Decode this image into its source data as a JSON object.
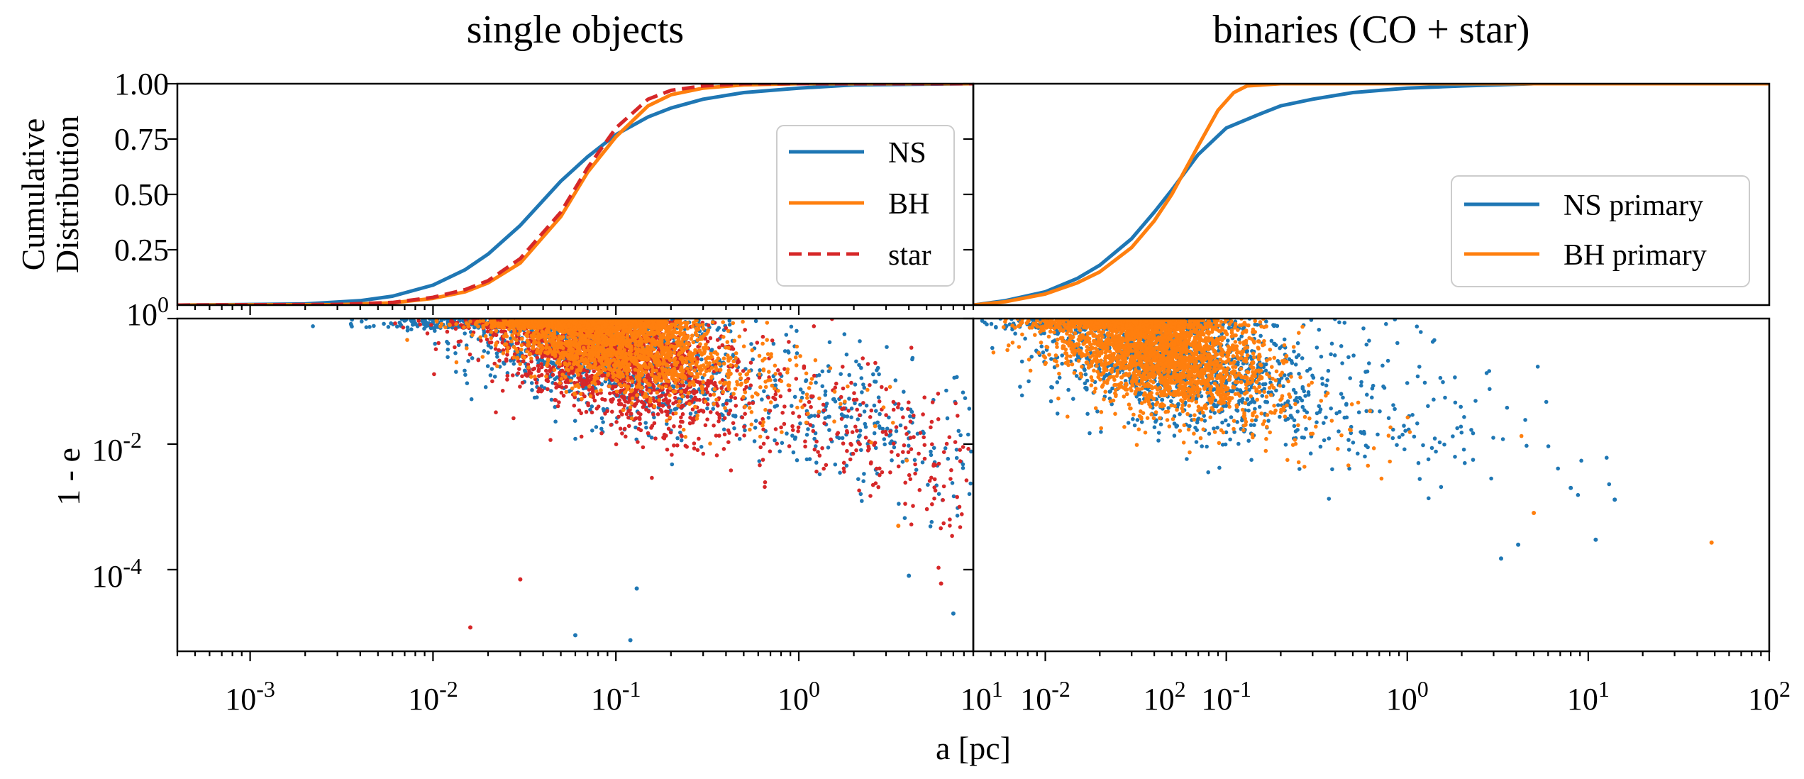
{
  "titles": {
    "left": "single objects",
    "right": "binaries (CO + star)"
  },
  "axes": {
    "x_label": "a [pc]",
    "top_y_label_lines": [
      "Cumulative",
      "Distribution"
    ],
    "bottom_y_label": "1 - e",
    "cdf_tick_labels": [
      "0.25",
      "0.50",
      "0.75",
      "1.00"
    ],
    "cdf_bottom_label_base": "10",
    "cdf_bottom_label_exp": "0",
    "y_tick_labels": [
      {
        "base": "10",
        "exp": "0",
        "value": 1
      },
      {
        "base": "10",
        "exp": "-2",
        "value": 0.01
      },
      {
        "base": "10",
        "exp": "-4",
        "value": 0.0001
      }
    ],
    "x_tick_labels_left": [
      {
        "base": "10",
        "exp": "-3",
        "value": 0.001
      },
      {
        "base": "10",
        "exp": "-2",
        "value": 0.01
      },
      {
        "base": "10",
        "exp": "-1",
        "value": 0.1
      },
      {
        "base": "10",
        "exp": "0",
        "value": 1
      },
      {
        "base": "10",
        "exp": "1",
        "value": 10
      },
      {
        "base": "10",
        "exp": "2",
        "value": 100
      }
    ],
    "x_tick_labels_right": [
      {
        "base": "10",
        "exp": "-2",
        "value": 0.01
      },
      {
        "base": "10",
        "exp": "-1",
        "value": 0.1
      },
      {
        "base": "10",
        "exp": "0",
        "value": 1
      },
      {
        "base": "10",
        "exp": "1",
        "value": 10
      },
      {
        "base": "10",
        "exp": "2",
        "value": 100
      }
    ]
  },
  "legends": {
    "left": [
      {
        "label": "NS",
        "color": "#1f77b4",
        "style": "solid"
      },
      {
        "label": "BH",
        "color": "#ff7f0e",
        "style": "solid"
      },
      {
        "label": "star",
        "color": "#d62728",
        "style": "dashed"
      }
    ],
    "right": [
      {
        "label": "NS primary",
        "color": "#1f77b4",
        "style": "solid"
      },
      {
        "label": "BH primary",
        "color": "#ff7f0e",
        "style": "solid"
      }
    ]
  },
  "chart_data": [
    {
      "type": "line",
      "panel": "top-left",
      "title": "single objects",
      "xscale": "log",
      "xlim": [
        0.0004,
        9
      ],
      "ylim": [
        0,
        1
      ],
      "ylabel": "Cumulative Distribution",
      "legend_position": "right",
      "series": [
        {
          "name": "NS",
          "color": "#1f77b4",
          "x": [
            0.0004,
            0.002,
            0.004,
            0.006,
            0.01,
            0.015,
            0.02,
            0.03,
            0.05,
            0.07,
            0.1,
            0.15,
            0.2,
            0.3,
            0.5,
            1,
            2,
            9
          ],
          "y": [
            0.0,
            0.005,
            0.02,
            0.04,
            0.09,
            0.16,
            0.23,
            0.36,
            0.56,
            0.67,
            0.77,
            0.85,
            0.89,
            0.93,
            0.96,
            0.98,
            0.995,
            1.0
          ]
        },
        {
          "name": "BH",
          "color": "#ff7f0e",
          "x": [
            0.0004,
            0.003,
            0.006,
            0.01,
            0.015,
            0.02,
            0.03,
            0.05,
            0.07,
            0.1,
            0.15,
            0.2,
            0.3,
            0.5,
            1,
            9
          ],
          "y": [
            0.0,
            0.002,
            0.01,
            0.03,
            0.06,
            0.1,
            0.19,
            0.4,
            0.6,
            0.76,
            0.9,
            0.95,
            0.98,
            0.995,
            1.0,
            1.0
          ]
        },
        {
          "name": "star",
          "color": "#d62728",
          "dashed": true,
          "x": [
            0.0004,
            0.003,
            0.006,
            0.01,
            0.015,
            0.02,
            0.03,
            0.05,
            0.07,
            0.1,
            0.15,
            0.2,
            0.3,
            0.5,
            1,
            9
          ],
          "y": [
            0.0,
            0.003,
            0.012,
            0.035,
            0.07,
            0.11,
            0.21,
            0.42,
            0.62,
            0.8,
            0.93,
            0.97,
            0.99,
            1.0,
            1.0,
            1.0
          ]
        }
      ]
    },
    {
      "type": "line",
      "panel": "top-right",
      "title": "binaries (CO + star)",
      "xscale": "log",
      "xlim": [
        0.004,
        100
      ],
      "ylim": [
        0,
        1
      ],
      "legend_position": "lower right",
      "series": [
        {
          "name": "NS primary",
          "color": "#1f77b4",
          "x": [
            0.004,
            0.006,
            0.01,
            0.015,
            0.02,
            0.03,
            0.04,
            0.05,
            0.07,
            0.1,
            0.15,
            0.2,
            0.3,
            0.5,
            1,
            2,
            5,
            100
          ],
          "y": [
            0.0,
            0.02,
            0.06,
            0.12,
            0.18,
            0.3,
            0.42,
            0.52,
            0.68,
            0.8,
            0.86,
            0.9,
            0.93,
            0.96,
            0.98,
            0.99,
            1.0,
            1.0
          ]
        },
        {
          "name": "BH primary",
          "color": "#ff7f0e",
          "x": [
            0.004,
            0.006,
            0.01,
            0.015,
            0.02,
            0.03,
            0.04,
            0.05,
            0.07,
            0.09,
            0.11,
            0.13,
            0.2,
            1,
            100
          ],
          "y": [
            0.0,
            0.015,
            0.05,
            0.1,
            0.15,
            0.26,
            0.38,
            0.5,
            0.72,
            0.88,
            0.96,
            0.99,
            1.0,
            1.0,
            1.0
          ]
        }
      ]
    },
    {
      "type": "scatter",
      "panel": "bottom-left",
      "xscale": "log",
      "yscale": "log",
      "xlim": [
        0.0004,
        9
      ],
      "ylim": [
        5e-06,
        1
      ],
      "xlabel": "a [pc]",
      "ylabel": "1 - e",
      "series": [
        {
          "name": "NS",
          "color": "#1f77b4",
          "clusters": [
            {
              "log_a_mean": -1.2,
              "log_a_sd": 0.42,
              "log_1e_center": -0.25,
              "slope": -0.9,
              "scatter": 0.55,
              "count": 1500,
              "seed": 11
            },
            {
              "log_a_mean": 0.3,
              "log_a_sd": 0.55,
              "log_1e_center": -1.6,
              "slope": -0.85,
              "scatter": 0.55,
              "count": 320,
              "seed": 12
            }
          ]
        },
        {
          "name": "star",
          "color": "#d62728",
          "clusters": [
            {
              "log_a_mean": -1.05,
              "log_a_sd": 0.35,
              "log_1e_center": -0.6,
              "slope": -0.9,
              "scatter": 0.5,
              "count": 1700,
              "seed": 21
            },
            {
              "log_a_mean": 0.35,
              "log_a_sd": 0.5,
              "log_1e_center": -1.8,
              "slope": -0.8,
              "scatter": 0.55,
              "count": 260,
              "seed": 22
            }
          ]
        },
        {
          "name": "BH",
          "color": "#ff7f0e",
          "clusters": [
            {
              "log_a_mean": -1.05,
              "log_a_sd": 0.32,
              "log_1e_center": -0.3,
              "slope": -0.6,
              "scatter": 0.38,
              "count": 2300,
              "seed": 31
            },
            {
              "log_a_mean": -0.2,
              "log_a_sd": 0.4,
              "log_1e_center": -1.0,
              "slope": -0.6,
              "scatter": 0.4,
              "count": 90,
              "seed": 32
            }
          ]
        }
      ],
      "outliers": [
        {
          "color": "#d62728",
          "a": 0.016,
          "one_minus_e": 1.2e-05
        },
        {
          "color": "#1f77b4",
          "a": 0.12,
          "one_minus_e": 7.5e-06
        },
        {
          "color": "#1f77b4",
          "a": 0.06,
          "one_minus_e": 9e-06
        },
        {
          "color": "#1f77b4",
          "a": 0.13,
          "one_minus_e": 5e-05
        },
        {
          "color": "#d62728",
          "a": 0.03,
          "one_minus_e": 7e-05
        },
        {
          "color": "#1f77b4",
          "a": 7,
          "one_minus_e": 2e-05
        },
        {
          "color": "#d62728",
          "a": 6,
          "one_minus_e": 6e-05
        },
        {
          "color": "#1f77b4",
          "a": 4,
          "one_minus_e": 8e-05
        },
        {
          "color": "#ff7f0e",
          "a": 3.5,
          "one_minus_e": 0.0005
        }
      ]
    },
    {
      "type": "scatter",
      "panel": "bottom-right",
      "xscale": "log",
      "yscale": "log",
      "xlim": [
        0.004,
        100
      ],
      "ylim": [
        5e-06,
        1
      ],
      "series": [
        {
          "name": "NS primary",
          "color": "#1f77b4",
          "clusters": [
            {
              "log_a_mean": -1.35,
              "log_a_sd": 0.38,
              "log_1e_center": -0.55,
              "slope": -0.8,
              "scatter": 0.55,
              "count": 1500,
              "seed": 41
            },
            {
              "log_a_mean": -0.1,
              "log_a_sd": 0.5,
              "log_1e_center": -1.3,
              "slope": -0.7,
              "scatter": 0.55,
              "count": 160,
              "seed": 42
            }
          ]
        },
        {
          "name": "BH primary",
          "color": "#ff7f0e",
          "clusters": [
            {
              "log_a_mean": -1.4,
              "log_a_sd": 0.3,
              "log_1e_center": -0.45,
              "slope": -0.7,
              "scatter": 0.45,
              "count": 2600,
              "seed": 51
            },
            {
              "log_a_mean": -0.7,
              "log_a_sd": 0.4,
              "log_1e_center": -1.5,
              "slope": -0.5,
              "scatter": 0.45,
              "count": 90,
              "seed": 52
            }
          ]
        }
      ],
      "outliers": [
        {
          "color": "#ff7f0e",
          "a": 48,
          "one_minus_e": 0.00027
        },
        {
          "color": "#1f77b4",
          "a": 14,
          "one_minus_e": 0.0013
        },
        {
          "color": "#1f77b4",
          "a": 11,
          "one_minus_e": 0.0003
        },
        {
          "color": "#1f77b4",
          "a": 3.3,
          "one_minus_e": 0.00015
        },
        {
          "color": "#1f77b4",
          "a": 4.1,
          "one_minus_e": 0.00025
        },
        {
          "color": "#ff7f0e",
          "a": 5,
          "one_minus_e": 0.0008
        },
        {
          "color": "#1f77b4",
          "a": 8,
          "one_minus_e": 0.002
        }
      ]
    }
  ]
}
